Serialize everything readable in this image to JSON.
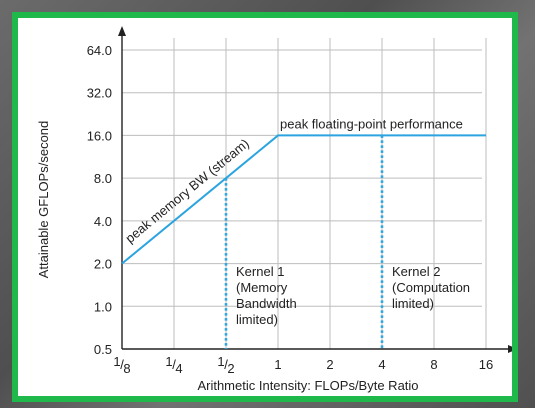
{
  "colors": {
    "frame_border": "#1fb84a",
    "roofline": "#2ba4e0",
    "grid": "#bdbdbd",
    "axis": "#222222"
  },
  "chart_data": {
    "type": "line",
    "title": "",
    "xlabel": "Arithmetic Intensity: FLOPs/Byte Ratio",
    "ylabel": "Attainable GFLOPs/second",
    "xscale": "log2",
    "yscale": "log2",
    "xlim": [
      0.125,
      16
    ],
    "ylim": [
      0.5,
      64
    ],
    "grid": true,
    "x_ticks": [
      {
        "value": 0.125,
        "num": "1",
        "den": "8"
      },
      {
        "value": 0.25,
        "num": "1",
        "den": "4"
      },
      {
        "value": 0.5,
        "num": "1",
        "den": "2"
      },
      {
        "value": 1,
        "label": "1"
      },
      {
        "value": 2,
        "label": "2"
      },
      {
        "value": 4,
        "label": "4"
      },
      {
        "value": 8,
        "label": "8"
      },
      {
        "value": 16,
        "label": "16"
      }
    ],
    "y_ticks": [
      {
        "value": 0.5,
        "label": "0.5"
      },
      {
        "value": 1,
        "label": "1.0"
      },
      {
        "value": 2,
        "label": "2.0"
      },
      {
        "value": 4,
        "label": "4.0"
      },
      {
        "value": 8,
        "label": "8.0"
      },
      {
        "value": 16,
        "label": "16.0"
      },
      {
        "value": 32,
        "label": "32.0"
      },
      {
        "value": 64,
        "label": "64.0"
      }
    ],
    "roofline": [
      {
        "x": 0.125,
        "y": 2
      },
      {
        "x": 1,
        "y": 16
      },
      {
        "x": 16,
        "y": 16
      }
    ],
    "annotations": {
      "memory_roof": "peak memory BW (stream)",
      "compute_roof": "peak floating-point performance"
    },
    "kernels": [
      {
        "x": 0.5,
        "y": 8,
        "lines": [
          "Kernel 1",
          "(Memory",
          "Bandwidth",
          "limited)"
        ]
      },
      {
        "x": 4,
        "y": 16,
        "lines": [
          "Kernel 2",
          "(Computation",
          "limited)"
        ]
      }
    ]
  }
}
